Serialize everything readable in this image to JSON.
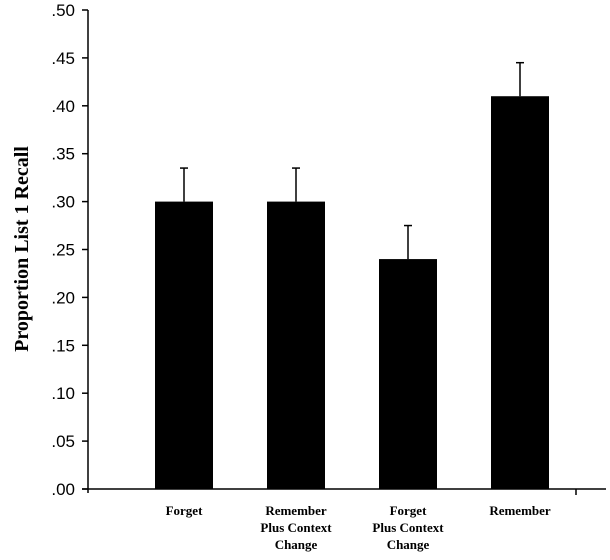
{
  "chart_data": {
    "type": "bar",
    "title": "",
    "xlabel": "",
    "ylabel": "Proportion List 1 Recall",
    "ylim": [
      0,
      0.5
    ],
    "yticks": [
      ".00",
      ".05",
      ".10",
      ".15",
      ".20",
      ".25",
      ".30",
      ".35",
      ".40",
      ".45",
      ".50"
    ],
    "categories": [
      [
        "Forget"
      ],
      [
        "Remember",
        "Plus Context",
        "Change"
      ],
      [
        "Forget",
        "Plus Context",
        "Change"
      ],
      [
        "Remember"
      ]
    ],
    "values": [
      0.3,
      0.3,
      0.24,
      0.41
    ],
    "error_bars": [
      0.035,
      0.035,
      0.035,
      0.035
    ],
    "bar_color": "#000000",
    "grid": false,
    "legend": "none"
  }
}
